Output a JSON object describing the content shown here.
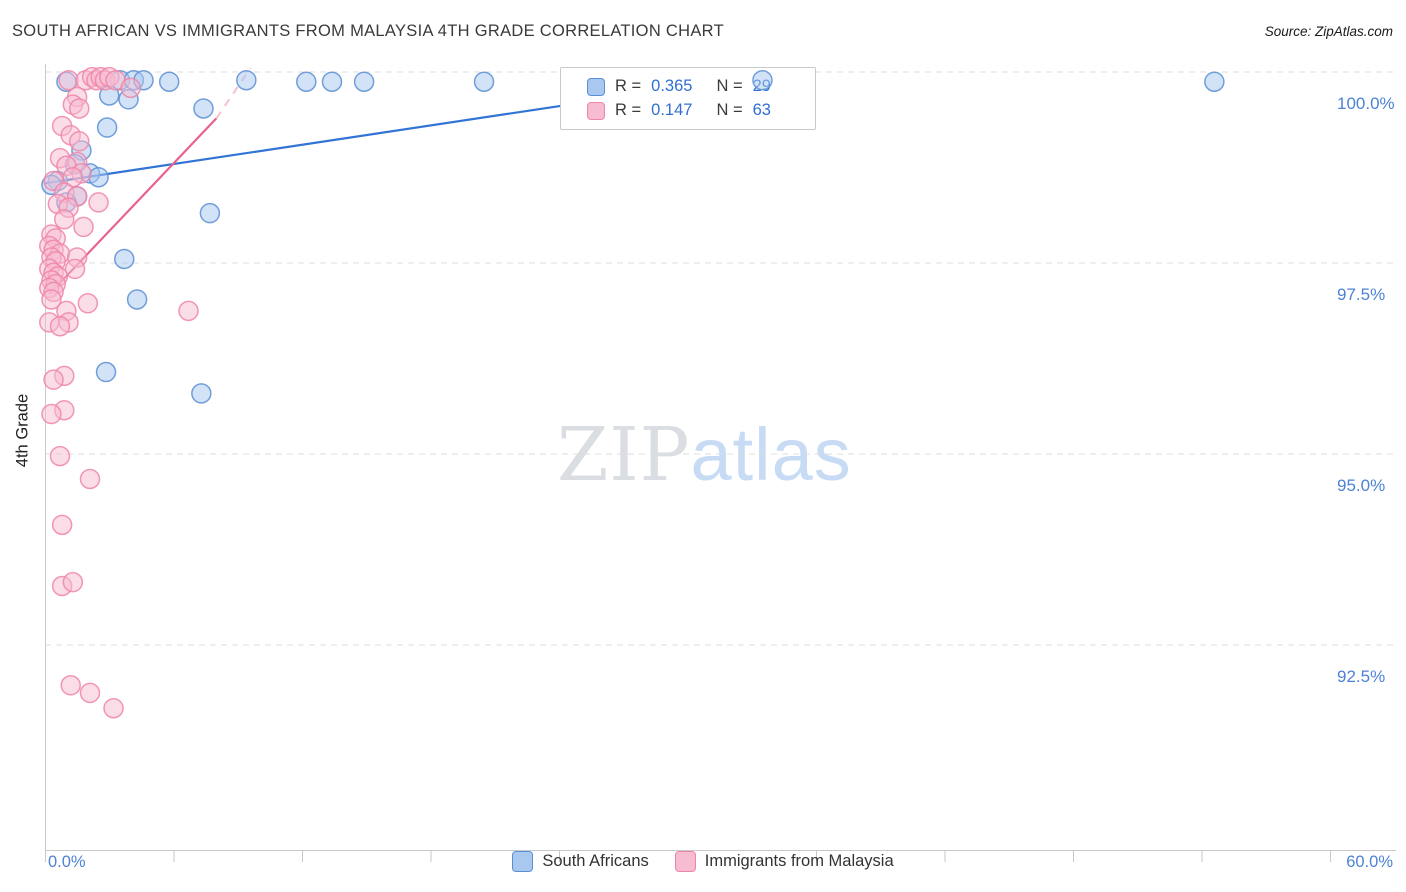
{
  "header": {
    "title": "SOUTH AFRICAN VS IMMIGRANTS FROM MALAYSIA 4TH GRADE CORRELATION CHART",
    "source": "Source: ZipAtlas.com"
  },
  "watermark": {
    "zip": "ZIP",
    "atlas": "atlas"
  },
  "axes": {
    "y_label": "4th Grade",
    "x_min_label": "0.0%",
    "x_max_label": "60.0%"
  },
  "stats_box": {
    "rows": [
      {
        "r_label": "R =",
        "r": "0.365",
        "n_label": "N =",
        "n": "29"
      },
      {
        "r_label": "R =",
        "r": "0.147",
        "n_label": "N =",
        "n": "63"
      }
    ]
  },
  "legend": {
    "series1": "South Africans",
    "series2": "Immigrants from Malaysia"
  },
  "chart_data": {
    "type": "scatter",
    "title": "SOUTH AFRICAN VS IMMIGRANTS FROM MALAYSIA 4TH GRADE CORRELATION CHART",
    "xlabel": "",
    "ylabel": "4th Grade",
    "xlim": [
      0,
      60
    ],
    "ylim": [
      90.1,
      100.4
    ],
    "x_tick_labels": [
      "0.0%",
      "60.0%"
    ],
    "y_tick_values": [
      100,
      97.5,
      95,
      92.5
    ],
    "y_tick_labels": [
      "100.0%",
      "97.5%",
      "95.0%",
      "92.5%"
    ],
    "grid": "horizontal-dashed",
    "legend_position": "bottom-center",
    "series": [
      {
        "key": "south-africans",
        "name": "South Africans",
        "color": "#5b8fd4",
        "line_color": "#3273d6",
        "fill": "#a8c8f0",
        "R": 0.365,
        "N": 29,
        "trend": {
          "x1": 0,
          "y1": 98.87,
          "x2": 33.5,
          "y2": 100.28
        },
        "points": [
          [
            1.0,
            100.2
          ],
          [
            3.5,
            100.22
          ],
          [
            4.15,
            100.22
          ],
          [
            4.6,
            100.22
          ],
          [
            5.8,
            100.2
          ],
          [
            9.4,
            100.22
          ],
          [
            12.2,
            100.2
          ],
          [
            13.4,
            100.2
          ],
          [
            14.9,
            100.2
          ],
          [
            20.5,
            100.2
          ],
          [
            33.5,
            100.22
          ],
          [
            54.6,
            100.2
          ],
          [
            3.0,
            100.02
          ],
          [
            3.9,
            99.97
          ],
          [
            7.4,
            99.85
          ],
          [
            2.9,
            99.6
          ],
          [
            1.7,
            99.3
          ],
          [
            1.4,
            99.12
          ],
          [
            2.1,
            99.0
          ],
          [
            2.5,
            98.95
          ],
          [
            0.6,
            98.9
          ],
          [
            0.3,
            98.85
          ],
          [
            1.5,
            98.7
          ],
          [
            1.0,
            98.62
          ],
          [
            7.7,
            98.48
          ],
          [
            3.7,
            97.88
          ],
          [
            4.3,
            97.35
          ],
          [
            2.85,
            96.4
          ],
          [
            7.3,
            96.12
          ]
        ]
      },
      {
        "key": "immigrants-malaysia",
        "name": "Immigrants from Malaysia",
        "color": "#ee85a8",
        "line_color": "#e8638c",
        "fill": "#f8bcd2",
        "R": 0.147,
        "N": 63,
        "trend": {
          "x1": 0.2,
          "y1": 97.42,
          "x2": 8.0,
          "y2": 99.72,
          "ext_x": 9.6,
          "ext_y": 100.38
        },
        "points": [
          [
            1.1,
            100.22
          ],
          [
            1.9,
            100.22
          ],
          [
            2.2,
            100.26
          ],
          [
            2.4,
            100.22
          ],
          [
            2.6,
            100.26
          ],
          [
            2.8,
            100.22
          ],
          [
            3.0,
            100.26
          ],
          [
            3.3,
            100.22
          ],
          [
            4.0,
            100.12
          ],
          [
            1.5,
            100.0
          ],
          [
            1.3,
            99.9
          ],
          [
            1.6,
            99.85
          ],
          [
            0.8,
            99.62
          ],
          [
            1.2,
            99.5
          ],
          [
            1.6,
            99.42
          ],
          [
            0.7,
            99.2
          ],
          [
            1.5,
            99.15
          ],
          [
            1.0,
            99.1
          ],
          [
            1.7,
            99.0
          ],
          [
            1.3,
            98.95
          ],
          [
            0.4,
            98.9
          ],
          [
            0.9,
            98.75
          ],
          [
            1.5,
            98.7
          ],
          [
            2.5,
            98.62
          ],
          [
            0.6,
            98.6
          ],
          [
            1.1,
            98.55
          ],
          [
            0.9,
            98.4
          ],
          [
            1.8,
            98.3
          ],
          [
            0.3,
            98.2
          ],
          [
            0.5,
            98.15
          ],
          [
            0.2,
            98.05
          ],
          [
            0.4,
            98.0
          ],
          [
            0.7,
            97.95
          ],
          [
            0.3,
            97.9
          ],
          [
            1.5,
            97.9
          ],
          [
            0.5,
            97.85
          ],
          [
            0.2,
            97.75
          ],
          [
            1.4,
            97.75
          ],
          [
            0.4,
            97.7
          ],
          [
            0.6,
            97.65
          ],
          [
            0.3,
            97.6
          ],
          [
            0.5,
            97.55
          ],
          [
            0.2,
            97.5
          ],
          [
            0.4,
            97.45
          ],
          [
            0.3,
            97.35
          ],
          [
            2.0,
            97.3
          ],
          [
            6.7,
            97.2
          ],
          [
            1.0,
            97.2
          ],
          [
            0.2,
            97.05
          ],
          [
            1.1,
            97.05
          ],
          [
            0.7,
            97.0
          ],
          [
            0.9,
            96.35
          ],
          [
            0.4,
            96.3
          ],
          [
            0.9,
            95.9
          ],
          [
            0.3,
            95.85
          ],
          [
            0.7,
            95.3
          ],
          [
            2.1,
            95.0
          ],
          [
            0.8,
            94.4
          ],
          [
            0.8,
            93.6
          ],
          [
            1.3,
            93.65
          ],
          [
            1.2,
            92.3
          ],
          [
            2.1,
            92.2
          ],
          [
            3.2,
            92.0
          ]
        ]
      }
    ]
  }
}
